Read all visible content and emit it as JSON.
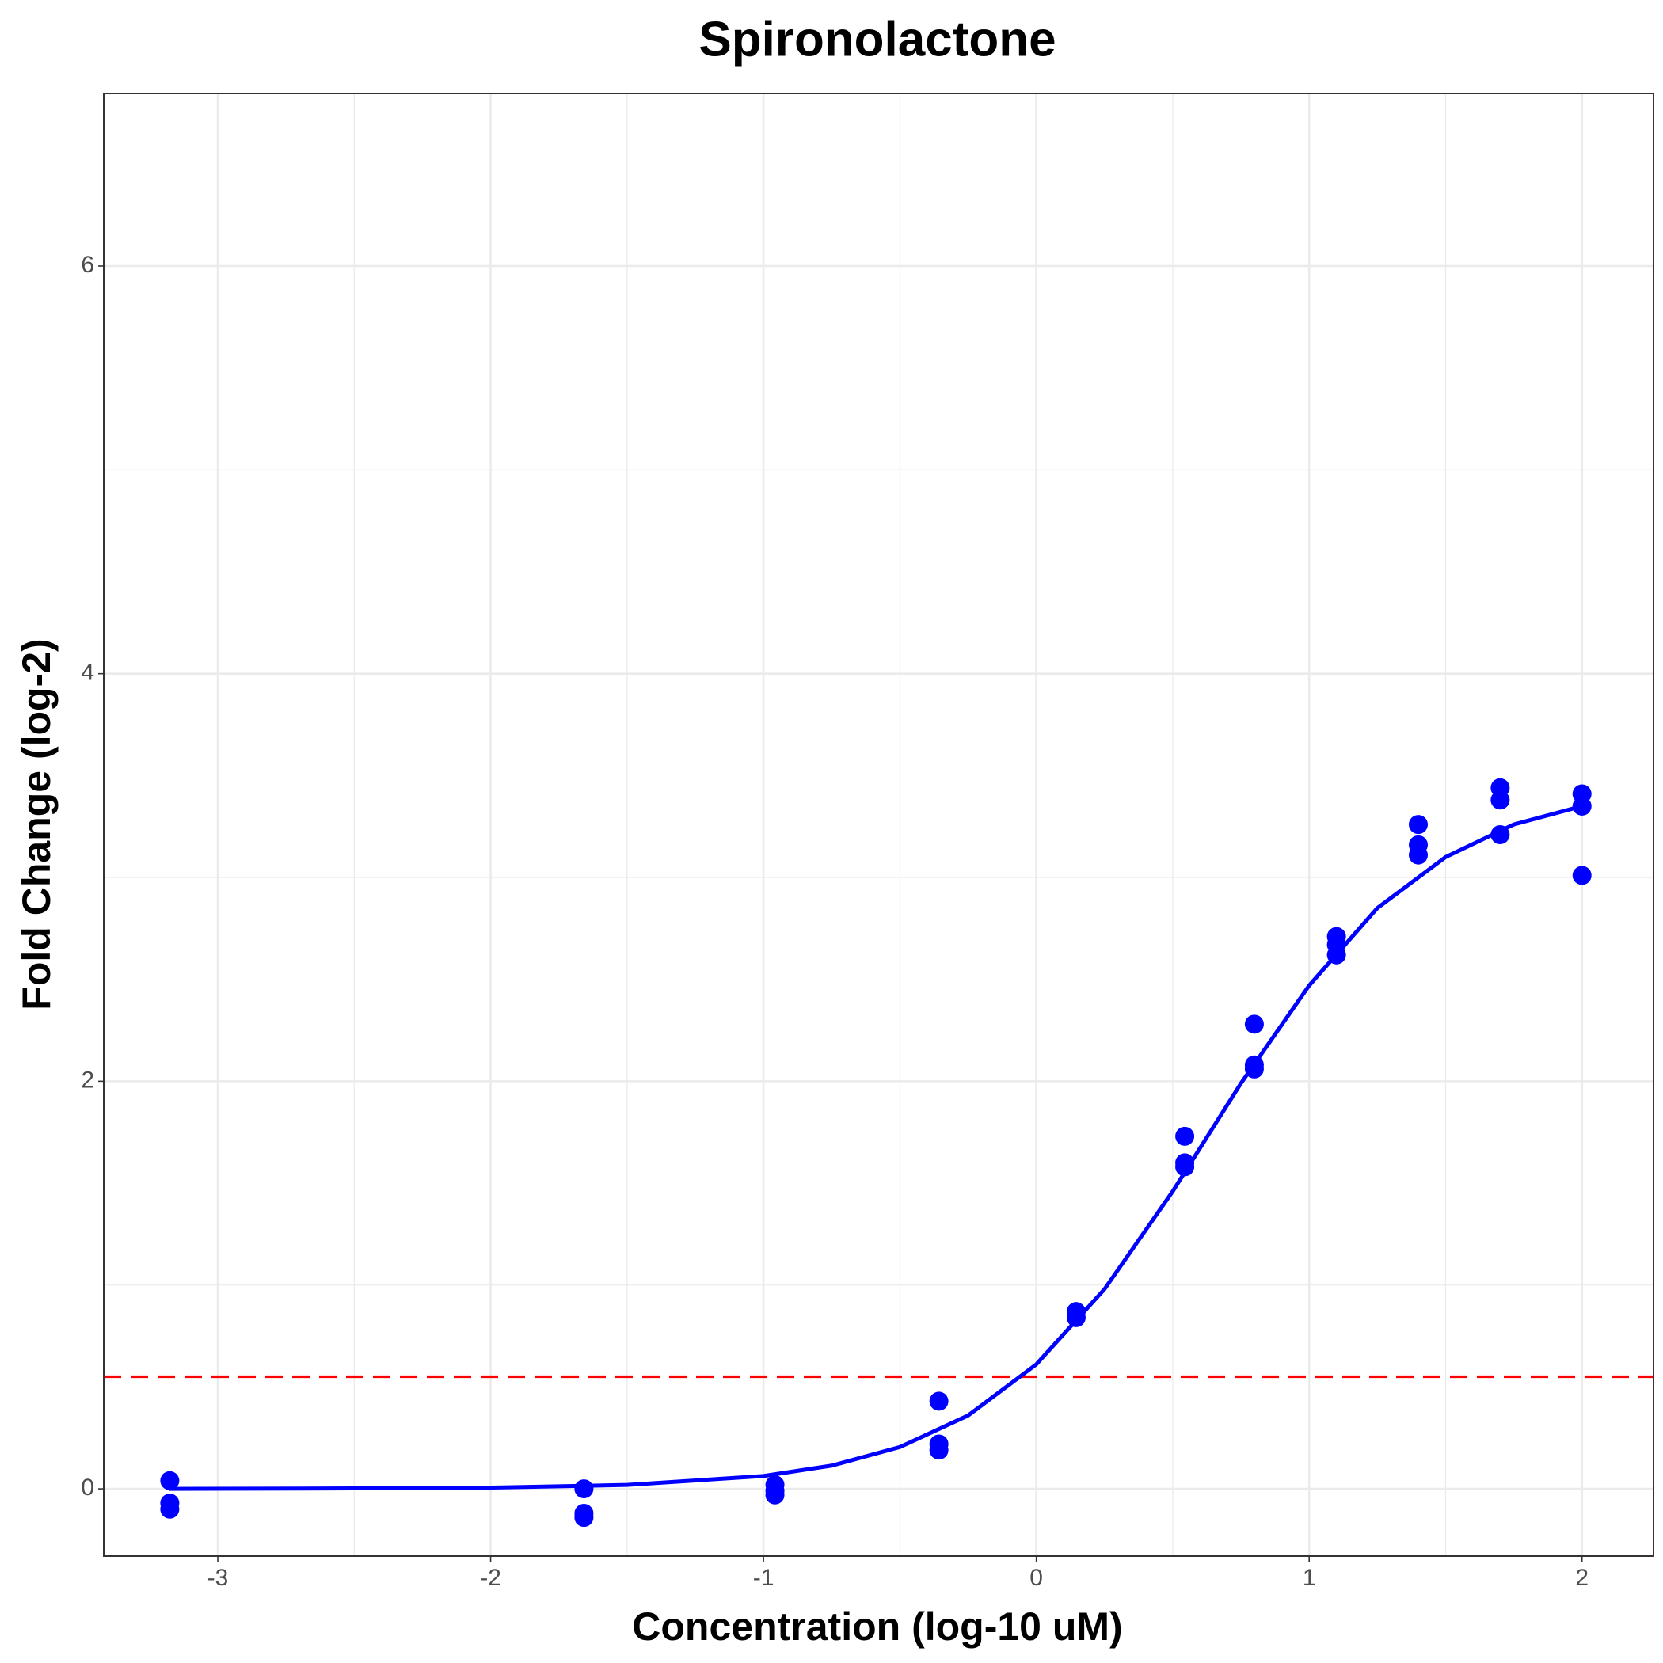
{
  "chart_data": {
    "type": "scatter",
    "title": "Spironolactone",
    "x_label": "Concentration (log-10 uM)",
    "y_label": "Fold Change (log-2)",
    "xlim": [
      -3.418,
      2.262
    ],
    "ylim": [
      -0.33,
      6.847
    ],
    "xticks": [
      -3,
      -2,
      -1,
      0,
      1,
      2
    ],
    "yticks": [
      0,
      2,
      4,
      6
    ],
    "grid": true,
    "threshold": 0.55,
    "threshold_color": "#ff0000",
    "points": {
      "color": "#0000ff",
      "x": [
        -3.176,
        -3.176,
        -3.176,
        -1.658,
        -1.658,
        -1.658,
        -0.958,
        -0.958,
        -0.958,
        -0.357,
        -0.357,
        -0.357,
        0.146,
        0.146,
        0.544,
        0.544,
        0.544,
        0.799,
        0.799,
        0.799,
        1.1,
        1.1,
        1.1,
        1.4,
        1.4,
        1.4,
        1.7,
        1.7,
        1.7,
        2.0,
        2.0,
        2.0
      ],
      "y": [
        0.04,
        -0.07,
        -0.1,
        0.0,
        -0.12,
        -0.14,
        0.02,
        -0.01,
        -0.03,
        0.43,
        0.22,
        0.19,
        0.87,
        0.84,
        1.73,
        1.6,
        1.58,
        2.28,
        2.08,
        2.06,
        2.71,
        2.67,
        2.62,
        3.26,
        3.16,
        3.11,
        3.44,
        3.38,
        3.21,
        3.41,
        3.35,
        3.01
      ]
    },
    "fit": {
      "color": "#0000ff",
      "x": [
        -3.18,
        -2.5,
        -2,
        -1.5,
        -1,
        -0.75,
        -0.5,
        -0.25,
        0,
        0.25,
        0.5,
        0.75,
        1,
        1.25,
        1.5,
        1.75,
        2.0
      ],
      "y": [
        0.0,
        0.002,
        0.006,
        0.019,
        0.063,
        0.114,
        0.205,
        0.36,
        0.611,
        0.98,
        1.46,
        1.99,
        2.47,
        2.85,
        3.1,
        3.26,
        3.35
      ]
    }
  }
}
